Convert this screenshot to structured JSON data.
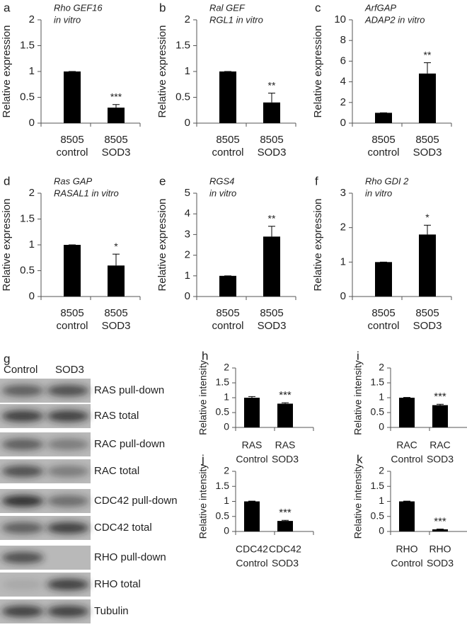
{
  "chart_data": [
    {
      "type": "bar",
      "panel": "a",
      "annotation": [
        "Rho GEF16",
        "in vitro"
      ],
      "ylabel": "Relative expression",
      "categories": [
        [
          "8505",
          "control"
        ],
        [
          "8505",
          "SOD3"
        ]
      ],
      "values": [
        1,
        0.3
      ],
      "errors": [
        0,
        0.06
      ],
      "significance": "***",
      "color": "#000000",
      "ylim": [
        0,
        2
      ],
      "yticks": [
        0,
        0.5,
        1,
        1.5,
        2
      ]
    },
    {
      "type": "bar",
      "panel": "b",
      "annotation": [
        "Ral GEF",
        "RGL1 in vitro"
      ],
      "ylabel": "Relative expression",
      "categories": [
        [
          "8505",
          "control"
        ],
        [
          "8505",
          "SOD3"
        ]
      ],
      "values": [
        1,
        0.4
      ],
      "errors": [
        0,
        0.18
      ],
      "significance": "**",
      "color": "#000000",
      "ylim": [
        0,
        2
      ],
      "yticks": [
        0,
        0.5,
        1,
        1.5,
        2
      ]
    },
    {
      "type": "bar",
      "panel": "c",
      "annotation": [
        "ArfGAP",
        "ADAP2 in vitro"
      ],
      "ylabel": "Relative expression",
      "categories": [
        [
          "8505",
          "control"
        ],
        [
          "8505",
          "SOD3"
        ]
      ],
      "values": [
        1,
        4.8
      ],
      "errors": [
        0,
        1.05
      ],
      "significance": "**",
      "color": "#000000",
      "ylim": [
        0,
        10
      ],
      "yticks": [
        0,
        2,
        4,
        6,
        8,
        10
      ]
    },
    {
      "type": "bar",
      "panel": "d",
      "annotation": [
        "Ras GAP",
        "RASAL1 in vitro"
      ],
      "ylabel": "Relative expression",
      "categories": [
        [
          "8505",
          "control"
        ],
        [
          "8505",
          "SOD3"
        ]
      ],
      "values": [
        1,
        0.6
      ],
      "errors": [
        0,
        0.22
      ],
      "significance": "*",
      "color": "#000000",
      "ylim": [
        0,
        2
      ],
      "yticks": [
        0,
        0.5,
        1,
        1.5,
        2
      ]
    },
    {
      "type": "bar",
      "panel": "e",
      "annotation": [
        "RGS4",
        "in vitro"
      ],
      "ylabel": "Relative expression",
      "categories": [
        [
          "8505",
          "control"
        ],
        [
          "8505",
          "SOD3"
        ]
      ],
      "values": [
        1,
        2.9
      ],
      "errors": [
        0,
        0.5
      ],
      "significance": "**",
      "color": "#000000",
      "ylim": [
        0,
        5
      ],
      "yticks": [
        0,
        1,
        2,
        3,
        4,
        5
      ]
    },
    {
      "type": "bar",
      "panel": "f",
      "annotation": [
        "Rho GDI 2",
        "in vitro"
      ],
      "ylabel": "Relative expression",
      "categories": [
        [
          "8505",
          "control"
        ],
        [
          "8505",
          "SOD3"
        ]
      ],
      "values": [
        1,
        1.8
      ],
      "errors": [
        0,
        0.27
      ],
      "significance": "*",
      "color": "#000000",
      "ylim": [
        0,
        3
      ],
      "yticks": [
        0,
        1,
        2,
        3
      ]
    },
    {
      "type": "bar",
      "panel": "h",
      "ylabel": "Relative intensity",
      "categories": [
        [
          "RAS",
          "Control"
        ],
        [
          "RAS",
          "SOD3"
        ]
      ],
      "values": [
        1,
        0.8
      ],
      "errors": [
        0.04,
        0.03
      ],
      "significance": "***",
      "color": "#000000",
      "ylim": [
        0,
        2
      ],
      "yticks": [
        0,
        0.5,
        1,
        1.5,
        2
      ]
    },
    {
      "type": "bar",
      "panel": "i",
      "ylabel": "Relative intensity",
      "categories": [
        [
          "RAC",
          "Control"
        ],
        [
          "RAC",
          "SOD3"
        ]
      ],
      "values": [
        1,
        0.75
      ],
      "errors": [
        0.01,
        0.03
      ],
      "significance": "***",
      "color": "#000000",
      "ylim": [
        0,
        2
      ],
      "yticks": [
        0,
        0.5,
        1,
        1.5,
        2
      ]
    },
    {
      "type": "bar",
      "panel": "j",
      "ylabel": "Relative intensity",
      "categories": [
        [
          "CDC42",
          "Control"
        ],
        [
          "CDC42",
          "SOD3"
        ]
      ],
      "values": [
        1,
        0.35
      ],
      "errors": [
        0.01,
        0.02
      ],
      "significance": "***",
      "color": "#000000",
      "ylim": [
        0,
        2
      ],
      "yticks": [
        0,
        0.5,
        1,
        1.5,
        2
      ]
    },
    {
      "type": "bar",
      "panel": "k",
      "ylabel": "Relative intensity",
      "categories": [
        [
          "RHO",
          "Control"
        ],
        [
          "RHO",
          "SOD3"
        ]
      ],
      "values": [
        1,
        0.07
      ],
      "errors": [
        0.01,
        0.01
      ],
      "significance": "***",
      "color": "#000000",
      "ylim": [
        0,
        2
      ],
      "yticks": [
        0,
        0.5,
        1,
        1.5,
        2
      ]
    }
  ],
  "blot": {
    "panel": "g",
    "columns": [
      "Control",
      "SOD3"
    ],
    "rows": [
      "RAS pull-down",
      "RAS total",
      "RAC pull-down",
      "RAC total",
      "CDC42 pull-down",
      "CDC42 total",
      "RHO pull-down",
      "RHO total",
      "Tubulin"
    ]
  }
}
